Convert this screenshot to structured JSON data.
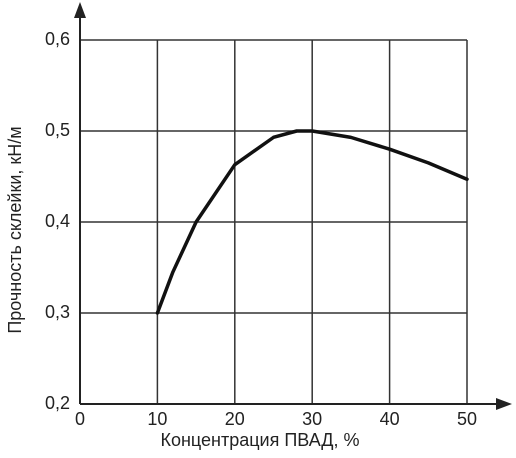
{
  "chart_data": {
    "type": "line",
    "x_label": "Концентрация ПВАД, %",
    "y_label": "Прочность склейки, кН/м",
    "x": [
      10,
      12,
      15,
      20,
      25,
      28,
      30,
      35,
      40,
      45,
      50
    ],
    "values": [
      0.3,
      0.345,
      0.4,
      0.463,
      0.493,
      0.5,
      0.5,
      0.493,
      0.48,
      0.465,
      0.447
    ],
    "color": "#111111",
    "xlim": [
      0,
      50
    ],
    "xticks": [
      0,
      10,
      20,
      30,
      40,
      50
    ],
    "ylim": [
      0.2,
      0.6
    ],
    "yticks": [
      {
        "value": 0.2,
        "label": "0,2"
      },
      {
        "value": 0.3,
        "label": "0,3"
      },
      {
        "value": 0.4,
        "label": "0,4"
      },
      {
        "value": 0.5,
        "label": "0,5"
      },
      {
        "value": 0.6,
        "label": "0,6"
      }
    ],
    "grid": true
  }
}
